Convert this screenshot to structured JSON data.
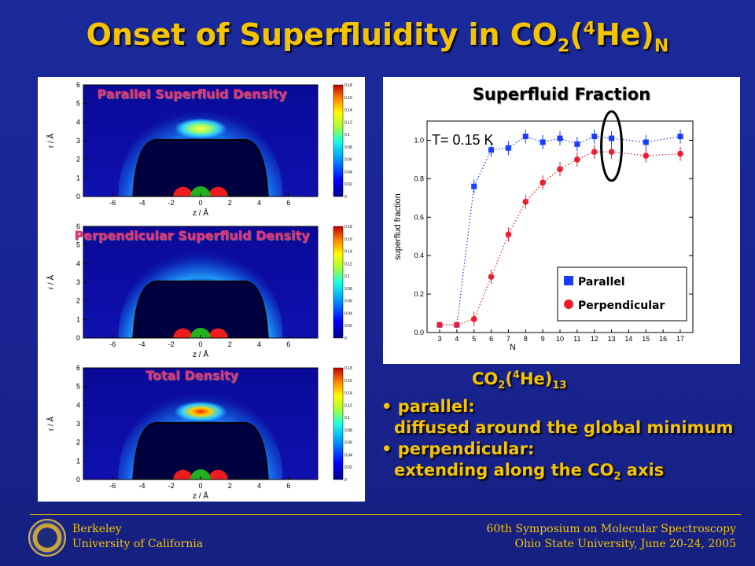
{
  "slide": {
    "title_main": "Onset of Superfluidity in CO",
    "title_sub2": "2",
    "title_paren": "(",
    "title_sup4": "4",
    "title_he": "He)",
    "title_subN": "N"
  },
  "panels": [
    {
      "title": "Parallel Superfluid Density"
    },
    {
      "title": "Perpendicular Superfluid Density"
    },
    {
      "title": "Total Density"
    }
  ],
  "density_axes": {
    "ylabel": "r / Å",
    "xlabel": "z / Å",
    "x_ticks": [
      "-6",
      "-4",
      "-2",
      "0",
      "2",
      "4",
      "6"
    ],
    "y_ticks": [
      "0",
      "1",
      "2",
      "3",
      "4",
      "5",
      "6"
    ],
    "colorbar_ticks": [
      "0",
      "0.02",
      "0.04",
      "0.06",
      "0.08",
      "0.1",
      "0.12",
      "0.14",
      "0.16",
      "0.18"
    ]
  },
  "chart_data": {
    "type": "scatter",
    "title": "Superfluid Fraction",
    "annotation": "T= 0.15 K",
    "xlabel": "N",
    "ylabel": "superflud fraction",
    "categories": [
      "3",
      "4",
      "5",
      "6",
      "7",
      "8",
      "9",
      "10",
      "11",
      "12",
      "13",
      "14",
      "15",
      "16",
      "17"
    ],
    "ylim": [
      0,
      1.1
    ],
    "y_ticks": [
      "0.0",
      "0.2",
      "0.4",
      "0.6",
      "0.8",
      "1.0"
    ],
    "legend_position": "bottom-right",
    "series": [
      {
        "name": "Parallel",
        "color": "#1a3cff",
        "marker": "square",
        "x": [
          3,
          4,
          5,
          6,
          7,
          8,
          9,
          10,
          11,
          12,
          13,
          15,
          17
        ],
        "values": [
          0.04,
          0.04,
          0.76,
          0.95,
          0.96,
          1.02,
          0.99,
          1.01,
          0.98,
          1.02,
          1.01,
          0.99,
          1.02
        ]
      },
      {
        "name": "Perpendicular",
        "color": "#ee1c2c",
        "marker": "circle",
        "x": [
          3,
          4,
          5,
          6,
          7,
          8,
          9,
          10,
          11,
          12,
          13,
          15,
          17
        ],
        "values": [
          0.04,
          0.04,
          0.07,
          0.29,
          0.51,
          0.68,
          0.78,
          0.85,
          0.9,
          0.94,
          0.94,
          0.92,
          0.93
        ]
      }
    ]
  },
  "caption": {
    "pre": "CO",
    "sub2": "2",
    "paren": "(",
    "sup4": "4",
    "he": "He)",
    "sub13": "13"
  },
  "bullets": {
    "b1": "• parallel:",
    "b1_detail": "diffused around the global minimum",
    "b2": "• perpendicular:",
    "b2_detail_pre": "extending along the CO",
    "b2_sub": "2",
    "b2_detail_post": " axis"
  },
  "footer": {
    "left1": "Berkeley",
    "left2": "University of California",
    "right1": "60th Symposium on Molecular Spectroscopy",
    "right2": "Ohio State University, June 20-24, 2005"
  },
  "colors": {
    "accent": "#f5c400",
    "background": "#1b2a9a",
    "panel_title": "#e8307a"
  }
}
